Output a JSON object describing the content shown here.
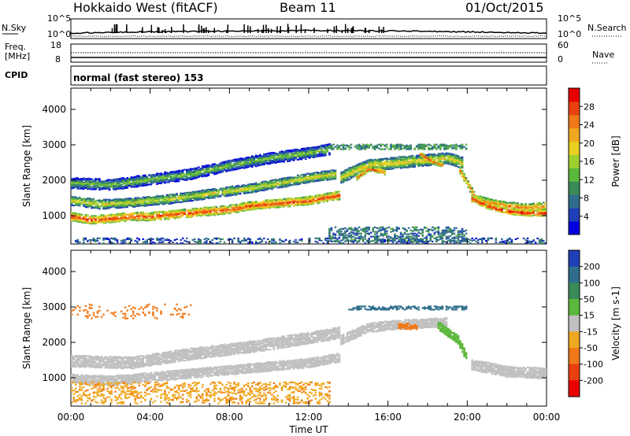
{
  "header": {
    "station": "Hokkaido West (fitACF)",
    "beam": "Beam 11",
    "date": "01/Oct/2015"
  },
  "noise_panel": {
    "left_label": "N.Sky",
    "right_label": "N.Search",
    "ticks": [
      "10^5",
      "10^0"
    ]
  },
  "freq_panel": {
    "left_label_1": "Freq.",
    "left_label_2": "[MHz]",
    "left_ticks": [
      "18",
      "8"
    ],
    "right_label": "Nave",
    "right_ticks": [
      "60",
      "0"
    ]
  },
  "cpid": {
    "label": "CPID",
    "text": "normal (fast stereo) 153"
  },
  "x_axis": {
    "label": "Time UT",
    "ticks": [
      "00:00",
      "04:00",
      "08:00",
      "12:00",
      "16:00",
      "20:00",
      "00:00"
    ]
  },
  "chart_data": [
    {
      "type": "heatmap",
      "name": "power",
      "ylabel": "Slant Range [km]",
      "yticks": [
        1000,
        2000,
        3000,
        4000
      ],
      "ylim": [
        200,
        4600
      ],
      "xlim_hours": [
        0,
        24
      ],
      "colorbar": {
        "label": "Power [dB]",
        "ticks": [
          4,
          8,
          12,
          16,
          20,
          24,
          28
        ],
        "range": [
          0,
          32
        ],
        "colors": [
          "#0000e0",
          "#1f3fb8",
          "#2e6e8c",
          "#3a8a5a",
          "#5cb83c",
          "#a0d030",
          "#e8d020",
          "#f0a820",
          "#f07818",
          "#e84010",
          "#e80000"
        ]
      },
      "bands": [
        {
          "level": 22,
          "points": [
            [
              0,
              1000
            ],
            [
              1,
              900
            ],
            [
              2,
              950
            ],
            [
              3,
              1000
            ],
            [
              4,
              1000
            ],
            [
              5,
              1050
            ],
            [
              6,
              1100
            ],
            [
              7,
              1150
            ],
            [
              8,
              1200
            ],
            [
              9,
              1300
            ],
            [
              10,
              1350
            ],
            [
              11,
              1400
            ],
            [
              12,
              1450
            ],
            [
              13,
              1550
            ],
            [
              13.5,
              1600
            ]
          ],
          "width": 220
        },
        {
          "level": 13,
          "points": [
            [
              0,
              1450
            ],
            [
              1.5,
              1350
            ],
            [
              3,
              1400
            ],
            [
              5,
              1500
            ],
            [
              7,
              1650
            ],
            [
              9,
              1800
            ],
            [
              10.5,
              1950
            ],
            [
              12,
              2100
            ],
            [
              13.3,
              2200
            ]
          ],
          "width": 260
        },
        {
          "level": 9,
          "points": [
            [
              0,
              1950
            ],
            [
              2,
              1900
            ],
            [
              4,
              2050
            ],
            [
              6,
              2200
            ],
            [
              8,
              2450
            ],
            [
              10,
              2650
            ],
            [
              12,
              2800
            ],
            [
              13,
              2900
            ]
          ],
          "width": 300
        },
        {
          "level": 14,
          "points": [
            [
              13.6,
              2100
            ],
            [
              14.3,
              2300
            ],
            [
              15,
              2450
            ],
            [
              16,
              2500
            ],
            [
              17,
              2550
            ],
            [
              18,
              2600
            ],
            [
              19,
              2650
            ],
            [
              19.8,
              2500
            ]
          ],
          "width": 320
        },
        {
          "level": 22,
          "points": [
            [
              14.4,
              2100
            ],
            [
              15,
              2350
            ],
            [
              15.8,
              2250
            ]
          ],
          "width": 120
        },
        {
          "level": 22,
          "points": [
            [
              17.6,
              2750
            ],
            [
              18.2,
              2550
            ],
            [
              18.8,
              2450
            ]
          ],
          "width": 120
        },
        {
          "level": 20,
          "points": [
            [
              19.6,
              2300
            ],
            [
              20,
              1900
            ],
            [
              20.4,
              1500
            ],
            [
              21,
              1400
            ],
            [
              22,
              1300
            ],
            [
              23,
              1250
            ],
            [
              24,
              1300
            ]
          ],
          "width": 200
        },
        {
          "level": 24,
          "points": [
            [
              20.2,
              1500
            ],
            [
              21,
              1300
            ],
            [
              22,
              1150
            ],
            [
              23,
              1100
            ],
            [
              24,
              1100
            ]
          ],
          "width": 160
        }
      ],
      "scatter_regions": [
        {
          "level": 6,
          "x": [
            0,
            24
          ],
          "y": [
            250,
            400
          ],
          "density": 0.06
        },
        {
          "level": 8,
          "x": [
            13,
            20
          ],
          "y": [
            300,
            700
          ],
          "density": 0.08
        },
        {
          "level": 10,
          "x": [
            13,
            20
          ],
          "y": [
            2900,
            3050
          ],
          "density": 0.12
        }
      ]
    },
    {
      "type": "heatmap",
      "name": "velocity",
      "ylabel": "Slant Range [km]",
      "yticks": [
        1000,
        2000,
        3000,
        4000
      ],
      "ylim": [
        200,
        4600
      ],
      "xlim_hours": [
        0,
        24
      ],
      "colorbar": {
        "label": "Velocity [m s-1]",
        "ticks": [
          200,
          100,
          50,
          15,
          -15,
          -50,
          -100,
          -200
        ],
        "colors": [
          "#1f3fb8",
          "#2e6e8c",
          "#3a8a5a",
          "#5cb83c",
          "#c0c0c0",
          "#f0a820",
          "#f07818",
          "#e84010",
          "#e80000"
        ]
      },
      "bands": [
        {
          "velocity": 0,
          "points": [
            [
              0,
              1000
            ],
            [
              2,
              950
            ],
            [
              4,
              1050
            ],
            [
              6,
              1150
            ],
            [
              8,
              1250
            ],
            [
              10,
              1350
            ],
            [
              12,
              1450
            ],
            [
              13.5,
              1600
            ]
          ],
          "width": 260
        },
        {
          "velocity": 0,
          "points": [
            [
              0,
              1500
            ],
            [
              3,
              1450
            ],
            [
              6,
              1700
            ],
            [
              9,
              1900
            ],
            [
              12,
              2150
            ],
            [
              13.5,
              2300
            ]
          ],
          "width": 320
        },
        {
          "velocity": 0,
          "points": [
            [
              13.6,
              2100
            ],
            [
              15,
              2450
            ],
            [
              17,
              2550
            ],
            [
              19,
              2600
            ]
          ],
          "width": 260
        },
        {
          "velocity": 0,
          "points": [
            [
              20.2,
              1400
            ],
            [
              22,
              1200
            ],
            [
              24,
              1150
            ]
          ],
          "width": 300
        },
        {
          "velocity": 30,
          "points": [
            [
              18.5,
              2500
            ],
            [
              19.5,
              2100
            ],
            [
              20,
              1500
            ]
          ],
          "width": 220
        },
        {
          "velocity": -60,
          "points": [
            [
              16.5,
              2500
            ],
            [
              17.5,
              2450
            ]
          ],
          "width": 140
        }
      ],
      "scatter_regions": [
        {
          "velocity": -40,
          "x": [
            0,
            13
          ],
          "y": [
            300,
            900
          ],
          "density": 0.05
        },
        {
          "velocity": 150,
          "x": [
            14,
            20
          ],
          "y": [
            2950,
            3050
          ],
          "density": 0.12
        },
        {
          "velocity": -80,
          "x": [
            0,
            6
          ],
          "y": [
            2700,
            3100
          ],
          "density": 0.02
        }
      ]
    }
  ]
}
